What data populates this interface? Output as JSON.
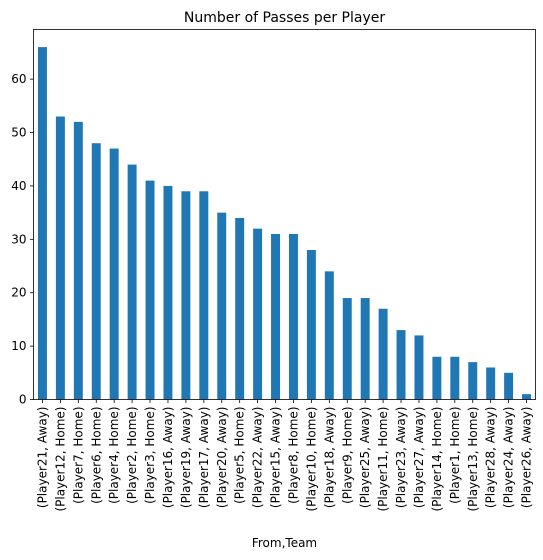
{
  "chart_data": {
    "type": "bar",
    "title": "Number of Passes per Player",
    "xlabel": "From,Team",
    "ylabel": "",
    "ylim": [
      0,
      69.3
    ],
    "yticks": [
      0,
      10,
      20,
      30,
      40,
      50,
      60
    ],
    "grid": false,
    "legend": "none",
    "bar_color": "#1f77b4",
    "categories": [
      "(Player21, Away)",
      "(Player12, Home)",
      "(Player7, Home)",
      "(Player6, Home)",
      "(Player4, Home)",
      "(Player2, Home)",
      "(Player3, Home)",
      "(Player16, Away)",
      "(Player19, Away)",
      "(Player17, Away)",
      "(Player20, Away)",
      "(Player5, Home)",
      "(Player22, Away)",
      "(Player15, Away)",
      "(Player8, Home)",
      "(Player10, Home)",
      "(Player18, Away)",
      "(Player9, Home)",
      "(Player25, Away)",
      "(Player11, Home)",
      "(Player23, Away)",
      "(Player27, Away)",
      "(Player14, Home)",
      "(Player1, Home)",
      "(Player13, Home)",
      "(Player28, Away)",
      "(Player24, Away)",
      "(Player26, Away)"
    ],
    "values": [
      66,
      53,
      52,
      48,
      47,
      44,
      41,
      40,
      39,
      39,
      35,
      34,
      32,
      31,
      31,
      28,
      24,
      19,
      19,
      17,
      13,
      12,
      8,
      8,
      7,
      6,
      5,
      1
    ]
  }
}
